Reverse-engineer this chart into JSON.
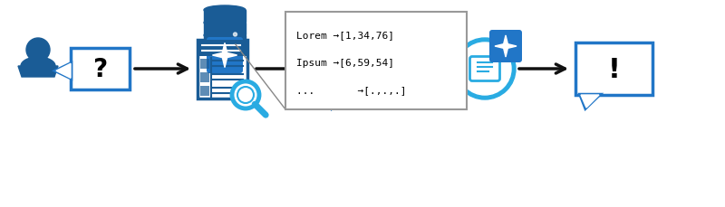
{
  "dark_blue": "#1a5c96",
  "mid_blue": "#2176c7",
  "light_blue": "#4ab0e8",
  "cyan_blue": "#29abe2",
  "arrow_color": "#111111",
  "tooltip_lines": [
    "Lorem →[1,34,76]",
    "Ipsum →[6,59,54]",
    "...       →[.,.,.]"
  ],
  "tooltip_font": "monospace",
  "tooltip_fontsize": 8.0,
  "figw": 8.0,
  "figh": 2.3,
  "dpi": 100,
  "xlim": [
    0,
    800
  ],
  "ylim": [
    0,
    230
  ]
}
